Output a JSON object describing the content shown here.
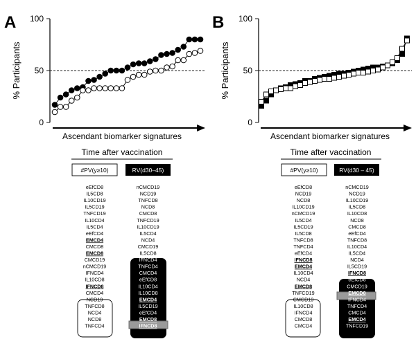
{
  "chart_data": [
    {
      "panel": "A",
      "type": "line",
      "ylabel": "% Participants",
      "xlabel": "Ascendant biomarker signatures",
      "ylim": [
        0,
        100
      ],
      "yticks": [
        "0",
        "50",
        "100"
      ],
      "reference_line": 50,
      "series": [
        {
          "marker": "filled-circle",
          "values": [
            17,
            24,
            27,
            31,
            33,
            34,
            40,
            41,
            44,
            47,
            50,
            50,
            50,
            53,
            56,
            57,
            57,
            59,
            61,
            65,
            66,
            67,
            70,
            73,
            80,
            80,
            80
          ]
        },
        {
          "marker": "open-circle",
          "values": [
            10,
            15,
            15,
            21,
            24,
            31,
            31,
            33,
            33,
            33,
            33,
            33,
            33,
            41,
            44,
            46,
            46,
            49,
            50,
            50,
            53,
            54,
            60,
            60,
            66,
            67,
            69
          ]
        }
      ]
    },
    {
      "panel": "B",
      "type": "line",
      "ylabel": "% Participants",
      "xlabel": "Ascendant biomarker signatures",
      "ylim": [
        0,
        100
      ],
      "yticks": [
        "0",
        "50",
        "100"
      ],
      "reference_line": 50,
      "series": [
        {
          "marker": "filled-square",
          "values": [
            16,
            21,
            27,
            31,
            33,
            34,
            36,
            37,
            38,
            40,
            40,
            42,
            43,
            44,
            45,
            46,
            47,
            47,
            48,
            49,
            50,
            51,
            52,
            53,
            53,
            54,
            55,
            57,
            60,
            66,
            81
          ]
        },
        {
          "marker": "open-square",
          "values": [
            20,
            27,
            30,
            31,
            32,
            33,
            33,
            35,
            36,
            38,
            39,
            40,
            41,
            42,
            42,
            43,
            44,
            45,
            46,
            47,
            48,
            48,
            49,
            50,
            51,
            53,
            55,
            58,
            62,
            71,
            79
          ]
        }
      ]
    }
  ],
  "tables": [
    {
      "panel": "A",
      "header": "Time after vaccination",
      "col1_title": "#PV(y≥10)",
      "col2_title": "RV(d30–45)",
      "col1": [
        {
          "t": "eEfCD8"
        },
        {
          "t": "IL5CD8"
        },
        {
          "t": "IL10CD19"
        },
        {
          "t": "IL5CD19"
        },
        {
          "t": "TNFCD19"
        },
        {
          "t": "IL10CD4"
        },
        {
          "t": "IL5CD4"
        },
        {
          "t": "eEfCD4"
        },
        {
          "t": "EMCD4",
          "b": true
        },
        {
          "t": "CMCD8"
        },
        {
          "t": "EMCD8",
          "b": true
        },
        {
          "t": "CMCD19"
        },
        {
          "t": "nCMCD19"
        },
        {
          "t": "IFNCD4"
        },
        {
          "t": "IL10CD8"
        },
        {
          "t": "IFNCD8",
          "b": true
        },
        {
          "t": "CMCD4"
        },
        {
          "t": "NCD19"
        },
        {
          "t": "TNFCD8"
        },
        {
          "t": "NCD4"
        },
        {
          "t": "NCD8"
        },
        {
          "t": "TNFCD4"
        }
      ],
      "col2": [
        {
          "t": "nCMCD19"
        },
        {
          "t": "NCD19"
        },
        {
          "t": "TNFCD8"
        },
        {
          "t": "NCD8"
        },
        {
          "t": "CMCD8"
        },
        {
          "t": "TNFCD19"
        },
        {
          "t": "IL10CD19"
        },
        {
          "t": "IL5CD4"
        },
        {
          "t": "NCD4"
        },
        {
          "t": "CMCD19"
        },
        {
          "t": "IL5CD8"
        },
        {
          "t": "IFNCD4"
        },
        {
          "t": "TNFCD4"
        },
        {
          "t": "CMCD4"
        },
        {
          "t": "eEfCD8"
        },
        {
          "t": "IL10CD4"
        },
        {
          "t": "IL10CD8"
        },
        {
          "t": "EMCD4",
          "b": true
        },
        {
          "t": "IL5CD19"
        },
        {
          "t": "eEfCD4"
        },
        {
          "t": "EMCD8",
          "b": true
        },
        {
          "t": "IFNCD8",
          "b": true
        }
      ]
    },
    {
      "panel": "B",
      "header": "Time after vaccination",
      "col1_title": "#PV(y≥10)",
      "col2_title": "RV(d30 – 45)",
      "col1": [
        {
          "t": "eEfCD8"
        },
        {
          "t": "NCD19"
        },
        {
          "t": "NCD8"
        },
        {
          "t": "IL10CD19"
        },
        {
          "t": "nCMCD19"
        },
        {
          "t": "IL5CD4"
        },
        {
          "t": "IL5CD19"
        },
        {
          "t": "IL5CD8"
        },
        {
          "t": "TNFCD8"
        },
        {
          "t": "TNFCD4"
        },
        {
          "t": "eEfCD4"
        },
        {
          "t": "IFNCD8",
          "b": true
        },
        {
          "t": "EMCD4",
          "b": true
        },
        {
          "t": "IL10CD4"
        },
        {
          "t": "NCD4"
        },
        {
          "t": "EMCD8",
          "b": true
        },
        {
          "t": "TNFCD19"
        },
        {
          "t": "CMCD19"
        },
        {
          "t": "IL10CD8"
        },
        {
          "t": "IFNCD4"
        },
        {
          "t": "CMCD8"
        },
        {
          "t": "CMCD4"
        }
      ],
      "col2": [
        {
          "t": "nCMCD19"
        },
        {
          "t": "NCD19"
        },
        {
          "t": "IL10CD19"
        },
        {
          "t": "IL5CD8"
        },
        {
          "t": "IL10CD8"
        },
        {
          "t": "NCD8"
        },
        {
          "t": "CMCD8"
        },
        {
          "t": "eEfCD4"
        },
        {
          "t": "TNFCD8"
        },
        {
          "t": "IL10CD4"
        },
        {
          "t": "IL5CD4"
        },
        {
          "t": "NCD4"
        },
        {
          "t": "IL5CD19"
        },
        {
          "t": "IFNCD8",
          "b": true
        },
        {
          "t": "eEfCD8"
        },
        {
          "t": "CMCD19"
        },
        {
          "t": "EMCD8",
          "b": true
        },
        {
          "t": "IFNCD4"
        },
        {
          "t": "TNFCD4"
        },
        {
          "t": "CMCD4"
        },
        {
          "t": "EMCD4",
          "b": true
        },
        {
          "t": "TNFCD19"
        }
      ]
    }
  ]
}
